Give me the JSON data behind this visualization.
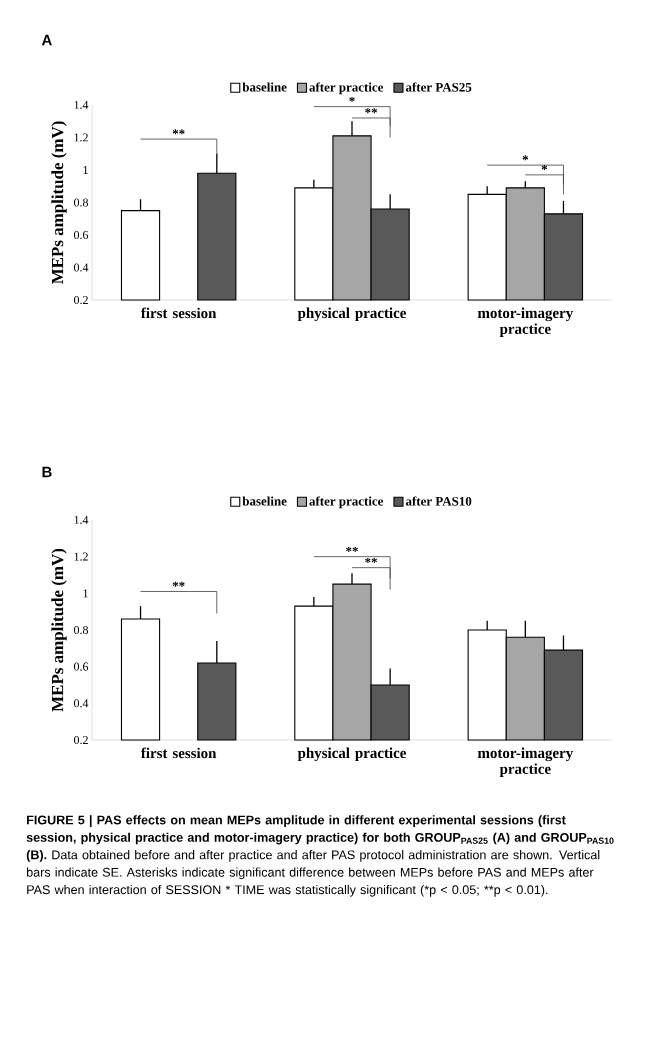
{
  "chart_data": [
    {
      "type": "bar",
      "title": "A",
      "ylabel": "MEPs amplitude (mV)",
      "categories": [
        "first session",
        "physical practice",
        "motor-imagery practice"
      ],
      "ylim": [
        0.2,
        1.4
      ],
      "yticks": [
        0.2,
        0.4,
        0.6,
        0.8,
        1,
        1.2,
        1.4
      ],
      "legend": "top",
      "series": [
        {
          "name": "baseline",
          "color": "#ffffff",
          "values": [
            0.75,
            0.89,
            0.85
          ],
          "errors": [
            [
              0.75,
              0.82
            ],
            [
              0.89,
              0.94
            ],
            [
              0.85,
              0.9
            ]
          ]
        },
        {
          "name": "after practice",
          "color": "#a6a6a6",
          "values": [
            null,
            1.21,
            0.89
          ],
          "errors": [
            null,
            [
              1.21,
              1.3
            ],
            [
              0.89,
              0.93
            ]
          ]
        },
        {
          "name": "after PAS25",
          "color": "#595959",
          "values": [
            0.98,
            0.76,
            0.73
          ],
          "errors": [
            [
              0.98,
              1.1
            ],
            [
              0.76,
              0.85
            ],
            [
              0.73,
              0.81
            ]
          ]
        }
      ],
      "annotations": [
        "**",
        "*",
        "**",
        "*",
        "*"
      ]
    },
    {
      "type": "bar",
      "title": "B",
      "ylabel": "MEPs amplitude (mV)",
      "categories": [
        "first session",
        "physical practice",
        "motor-imagery practice"
      ],
      "ylim": [
        0.2,
        1.4
      ],
      "yticks": [
        0.2,
        0.4,
        0.6,
        0.8,
        1,
        1.2,
        1.4
      ],
      "legend": "top",
      "series": [
        {
          "name": "baseline",
          "color": "#ffffff",
          "values": [
            0.86,
            0.93,
            0.8
          ],
          "errors": [
            [
              0.86,
              0.93
            ],
            [
              0.93,
              0.98
            ],
            [
              0.8,
              0.85
            ]
          ]
        },
        {
          "name": "after practice",
          "color": "#a6a6a6",
          "values": [
            null,
            1.05,
            0.76
          ],
          "errors": [
            null,
            [
              1.05,
              1.11
            ],
            [
              0.76,
              0.85
            ]
          ]
        },
        {
          "name": "after PAS10",
          "color": "#595959",
          "values": [
            0.62,
            0.5,
            0.69
          ],
          "errors": [
            [
              0.62,
              0.74
            ],
            [
              0.5,
              0.59
            ],
            [
              0.69,
              0.77
            ]
          ]
        }
      ],
      "annotations": [
        "**",
        "**",
        "**",
        "FIGURE 5 | PAS effects on mean MEPs amplitude in different experimental sessions (first session, physical practice and motor-imagery practice) for both GROUP$_{PAS25}$ (A) and GROUP$_{PAS10}$ (B).",
        "Data obtained before and after practice and after PAS protocol administration are shown. Vertical bars indicate SE. Asterisks indicate significant difference between MEPs before PAS and MEPs after PAS when interaction of SESSION * TIME was statistically significant (*p < 0.05; **p < 0.01)."
      ]
    }
  ]
}
